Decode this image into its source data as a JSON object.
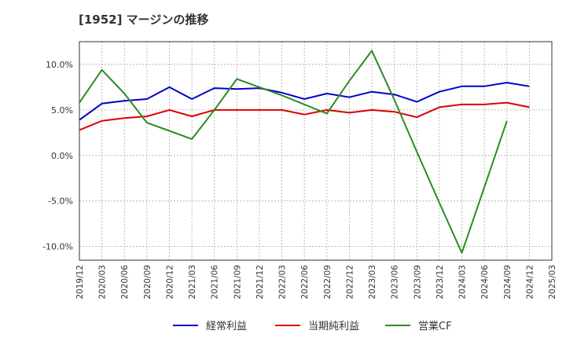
{
  "title": "[1952]  マージンの推移",
  "chart_data": {
    "type": "line",
    "x": [
      "2019/12",
      "2020/03",
      "2020/06",
      "2020/09",
      "2020/12",
      "2021/03",
      "2021/06",
      "2021/09",
      "2021/12",
      "2022/03",
      "2022/06",
      "2022/09",
      "2022/12",
      "2023/03",
      "2023/06",
      "2023/09",
      "2023/12",
      "2024/03",
      "2024/06",
      "2024/09",
      "2024/12",
      "2025/03"
    ],
    "ylim": [
      -11.5,
      12.5
    ],
    "yticks": [
      10,
      5,
      0,
      -5,
      -10
    ],
    "ytick_labels": [
      "10.0%",
      "5.0%",
      "0.0%",
      "-5.0%",
      "-10.0%"
    ],
    "grid": true,
    "legend_position": "bottom",
    "series": [
      {
        "name": "経常利益",
        "color": "#0000cc",
        "values": [
          3.9,
          5.7,
          6.0,
          6.2,
          7.5,
          6.2,
          7.4,
          7.3,
          7.4,
          6.9,
          6.2,
          6.8,
          6.4,
          7.0,
          6.7,
          5.9,
          7.0,
          7.6,
          7.6,
          8.0,
          7.6,
          null
        ]
      },
      {
        "name": "当期純利益",
        "color": "#dd0000",
        "values": [
          2.8,
          3.8,
          4.1,
          4.3,
          5.0,
          4.3,
          5.0,
          5.0,
          5.0,
          5.0,
          4.5,
          5.0,
          4.7,
          5.0,
          4.8,
          4.2,
          5.3,
          5.6,
          5.6,
          5.8,
          5.3,
          null
        ]
      },
      {
        "name": "営業CF",
        "color": "#2e8b22",
        "values": [
          5.8,
          9.4,
          6.8,
          3.6,
          2.7,
          1.8,
          5.0,
          8.4,
          7.5,
          6.6,
          5.6,
          4.6,
          8.2,
          11.5,
          6.1,
          0.4,
          -5.2,
          -10.7,
          -3.5,
          3.8,
          null,
          null
        ]
      }
    ]
  }
}
